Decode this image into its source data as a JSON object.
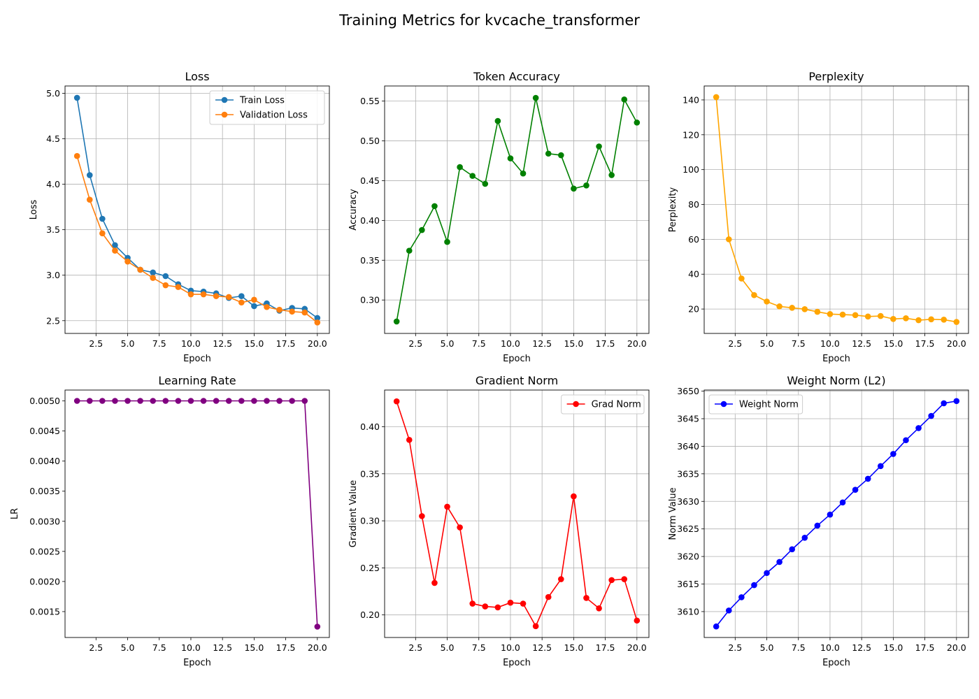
{
  "figure": {
    "suptitle": "Training Metrics for kvcache_transformer"
  },
  "chart_data": [
    {
      "id": "loss",
      "type": "line",
      "title": "Loss",
      "xlabel": "Epoch",
      "ylabel": "Loss",
      "xlim": [
        0.05,
        20.95
      ],
      "ylim": [
        2.36,
        5.08
      ],
      "xticks": [
        2.5,
        5.0,
        7.5,
        10.0,
        12.5,
        15.0,
        17.5,
        20.0
      ],
      "yticks": [
        2.5,
        3.0,
        3.5,
        4.0,
        4.5,
        5.0
      ],
      "grid": true,
      "legend": "top-right",
      "x": [
        1,
        2,
        3,
        4,
        5,
        6,
        7,
        8,
        9,
        10,
        11,
        12,
        13,
        14,
        15,
        16,
        17,
        18,
        19,
        20
      ],
      "series": [
        {
          "name": "Train Loss",
          "color": "#1f77b4",
          "values": [
            4.95,
            4.1,
            3.62,
            3.33,
            3.19,
            3.06,
            3.03,
            2.99,
            2.9,
            2.83,
            2.82,
            2.8,
            2.75,
            2.77,
            2.66,
            2.69,
            2.61,
            2.64,
            2.63,
            2.53
          ]
        },
        {
          "name": "Validation Loss",
          "color": "#ff7f0e",
          "values": [
            4.31,
            3.83,
            3.46,
            3.27,
            3.15,
            3.06,
            2.97,
            2.89,
            2.87,
            2.79,
            2.79,
            2.77,
            2.76,
            2.7,
            2.73,
            2.65,
            2.62,
            2.6,
            2.59,
            2.48
          ]
        }
      ]
    },
    {
      "id": "accuracy",
      "type": "line",
      "title": "Token Accuracy",
      "xlabel": "Epoch",
      "ylabel": "Accuracy",
      "xlim": [
        0.05,
        20.95
      ],
      "ylim": [
        0.258,
        0.569
      ],
      "xticks": [
        2.5,
        5.0,
        7.5,
        10.0,
        12.5,
        15.0,
        17.5,
        20.0
      ],
      "yticks": [
        0.3,
        0.35,
        0.4,
        0.45,
        0.5,
        0.55
      ],
      "grid": true,
      "x": [
        1,
        2,
        3,
        4,
        5,
        6,
        7,
        8,
        9,
        10,
        11,
        12,
        13,
        14,
        15,
        16,
        17,
        18,
        19,
        20
      ],
      "series": [
        {
          "color": "#008000",
          "values": [
            0.273,
            0.362,
            0.388,
            0.418,
            0.373,
            0.467,
            0.456,
            0.446,
            0.525,
            0.478,
            0.459,
            0.554,
            0.484,
            0.482,
            0.44,
            0.444,
            0.493,
            0.457,
            0.552,
            0.523
          ]
        }
      ]
    },
    {
      "id": "perplexity",
      "type": "line",
      "title": "Perplexity",
      "xlabel": "Epoch",
      "ylabel": "Perplexity",
      "xlim": [
        0.05,
        20.95
      ],
      "ylim": [
        6.0,
        148.0
      ],
      "xticks": [
        2.5,
        5.0,
        7.5,
        10.0,
        12.5,
        15.0,
        17.5,
        20.0
      ],
      "yticks": [
        20,
        40,
        60,
        80,
        100,
        120,
        140
      ],
      "grid": true,
      "x": [
        1,
        2,
        3,
        4,
        5,
        6,
        7,
        8,
        9,
        10,
        11,
        12,
        13,
        14,
        15,
        16,
        17,
        18,
        19,
        20
      ],
      "series": [
        {
          "color": "#ffa500",
          "values": [
            141.6,
            60.0,
            37.5,
            28.0,
            24.3,
            21.5,
            20.7,
            19.9,
            18.4,
            17.1,
            16.8,
            16.5,
            15.7,
            16.0,
            14.3,
            14.7,
            13.6,
            14.1,
            13.9,
            12.6
          ]
        }
      ]
    },
    {
      "id": "lr",
      "type": "line",
      "title": "Learning Rate",
      "xlabel": "Epoch",
      "ylabel": "LR",
      "xlim": [
        0.05,
        20.95
      ],
      "ylim": [
        0.00107,
        0.00518
      ],
      "xticks": [
        2.5,
        5.0,
        7.5,
        10.0,
        12.5,
        15.0,
        17.5,
        20.0
      ],
      "yticks": [
        0.0015,
        0.002,
        0.0025,
        0.003,
        0.0035,
        0.004,
        0.0045,
        0.005
      ],
      "ytick_decimals": 4,
      "grid": false,
      "x": [
        1,
        2,
        3,
        4,
        5,
        6,
        7,
        8,
        9,
        10,
        11,
        12,
        13,
        14,
        15,
        16,
        17,
        18,
        19,
        20
      ],
      "series": [
        {
          "color": "#800080",
          "values": [
            0.005,
            0.005,
            0.005,
            0.005,
            0.005,
            0.005,
            0.005,
            0.005,
            0.005,
            0.005,
            0.005,
            0.005,
            0.005,
            0.005,
            0.005,
            0.005,
            0.005,
            0.005,
            0.005,
            0.00125
          ]
        }
      ]
    },
    {
      "id": "gradnorm",
      "type": "line",
      "title": "Gradient Norm",
      "xlabel": "Epoch",
      "ylabel": "Gradient Value",
      "xlim": [
        0.05,
        20.95
      ],
      "ylim": [
        0.176,
        0.439
      ],
      "xticks": [
        2.5,
        5.0,
        7.5,
        10.0,
        12.5,
        15.0,
        17.5,
        20.0
      ],
      "yticks": [
        0.2,
        0.25,
        0.3,
        0.35,
        0.4
      ],
      "grid": true,
      "legend": "top-right",
      "x": [
        1,
        2,
        3,
        4,
        5,
        6,
        7,
        8,
        9,
        10,
        11,
        12,
        13,
        14,
        15,
        16,
        17,
        18,
        19,
        20
      ],
      "series": [
        {
          "name": "Grad Norm",
          "color": "#ff0000",
          "values": [
            0.427,
            0.386,
            0.305,
            0.234,
            0.315,
            0.293,
            0.212,
            0.209,
            0.208,
            0.213,
            0.212,
            0.188,
            0.219,
            0.238,
            0.326,
            0.218,
            0.207,
            0.237,
            0.238,
            0.194
          ]
        }
      ]
    },
    {
      "id": "weightnorm",
      "type": "line",
      "title": "Weight Norm (L2)",
      "xlabel": "Epoch",
      "ylabel": "Norm Value",
      "xlim": [
        0.05,
        20.95
      ],
      "ylim": [
        3605.3,
        3650.2
      ],
      "xticks": [
        2.5,
        5.0,
        7.5,
        10.0,
        12.5,
        15.0,
        17.5,
        20.0
      ],
      "yticks": [
        3610,
        3615,
        3620,
        3625,
        3630,
        3635,
        3640,
        3645,
        3650
      ],
      "grid": true,
      "legend": "top-left",
      "x": [
        1,
        2,
        3,
        4,
        5,
        6,
        7,
        8,
        9,
        10,
        11,
        12,
        13,
        14,
        15,
        16,
        17,
        18,
        19,
        20
      ],
      "series": [
        {
          "name": "Weight Norm",
          "color": "#0000ff",
          "values": [
            3607.3,
            3610.2,
            3612.6,
            3614.8,
            3617.0,
            3619.0,
            3621.3,
            3623.4,
            3625.6,
            3627.6,
            3629.8,
            3632.1,
            3634.1,
            3636.4,
            3638.6,
            3641.1,
            3643.3,
            3645.5,
            3647.8,
            3648.2
          ]
        }
      ]
    }
  ]
}
